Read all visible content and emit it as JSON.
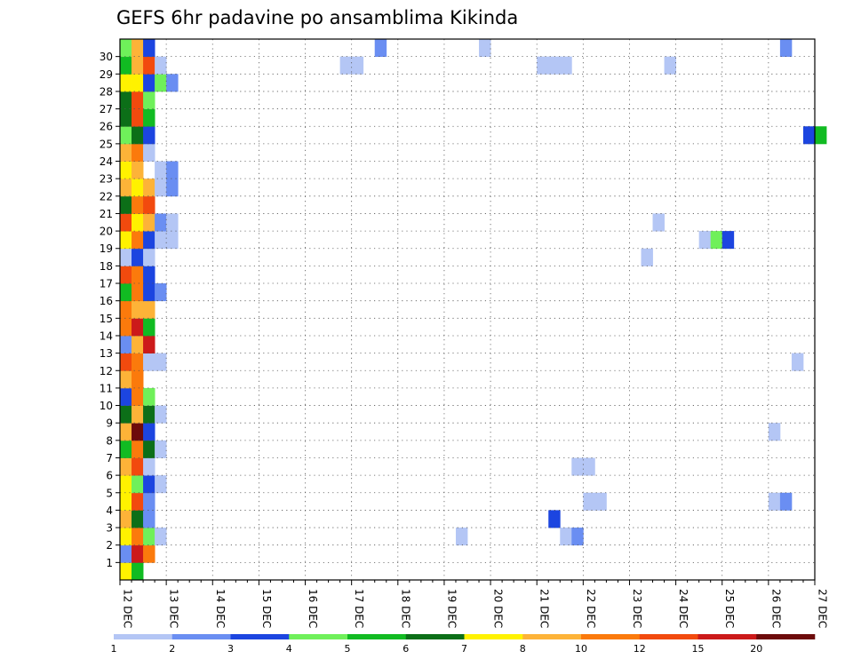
{
  "chart_data": {
    "type": "heatmap",
    "title": "GEFS 6hr padavine po ansamblima Kikinda",
    "xlabel": "",
    "ylabel": "",
    "x_ticks": [
      "12 DEC",
      "13 DEC",
      "14 DEC",
      "15 DEC",
      "16 DEC",
      "17 DEC",
      "18 DEC",
      "19 DEC",
      "20 DEC",
      "21 DEC",
      "22 DEC",
      "23 DEC",
      "24 DEC",
      "25 DEC",
      "26 DEC",
      "27 DEC"
    ],
    "y_ticks": [
      "1",
      "2",
      "3",
      "4",
      "5",
      "6",
      "7",
      "8",
      "9",
      "10",
      "11",
      "12",
      "13",
      "14",
      "15",
      "16",
      "17",
      "18",
      "19",
      "20",
      "21",
      "22",
      "23",
      "24",
      "25",
      "26",
      "27",
      "28",
      "29",
      "30"
    ],
    "time_step_hours": 6,
    "members": 30,
    "grid": true,
    "legend_placement": "bottom",
    "color_levels": [
      {
        "from": "1",
        "to": "2",
        "color": "#b4c6f5"
      },
      {
        "from": "2",
        "to": "3",
        "color": "#6a8ef2"
      },
      {
        "from": "3",
        "to": "4",
        "color": "#1c45e0"
      },
      {
        "from": "4",
        "to": "5",
        "color": "#6ff05a"
      },
      {
        "from": "5",
        "to": "6",
        "color": "#11bb22"
      },
      {
        "from": "6",
        "to": "7",
        "color": "#0c6f18"
      },
      {
        "from": "7",
        "to": "8",
        "color": "#fff200"
      },
      {
        "from": "8",
        "to": "10",
        "color": "#fdb338"
      },
      {
        "from": "10",
        "to": "12",
        "color": "#fb7a0c"
      },
      {
        "from": "12",
        "to": "15",
        "color": "#f24a0e"
      },
      {
        "from": "15",
        "to": "20",
        "color": "#cc1a1a"
      },
      {
        "from": "20",
        "to": "",
        "color": "#6d0b0b"
      }
    ],
    "legend_labels": [
      "1",
      "2",
      "3",
      "4",
      "5",
      "6",
      "7",
      "8",
      "10",
      "12",
      "15",
      "20"
    ],
    "cells": [
      {
        "m": 0,
        "s": [
          [
            0,
            "#fff200"
          ],
          [
            1,
            "#11bb22"
          ]
        ]
      },
      {
        "m": 1,
        "s": [
          [
            0,
            "#6a8ef2"
          ],
          [
            1,
            "#cc1a1a"
          ],
          [
            2,
            "#fb7a0c"
          ]
        ]
      },
      {
        "m": 2,
        "s": [
          [
            0,
            "#fff200"
          ],
          [
            1,
            "#fb7a0c"
          ],
          [
            2,
            "#6ff05a"
          ],
          [
            3,
            "#b4c6f5"
          ],
          [
            29,
            "#b4c6f5"
          ],
          [
            38,
            "#b4c6f5"
          ],
          [
            39,
            "#6a8ef2"
          ]
        ]
      },
      {
        "m": 3,
        "s": [
          [
            0,
            "#fdb338"
          ],
          [
            1,
            "#0c6f18"
          ],
          [
            2,
            "#6a8ef2"
          ],
          [
            37,
            "#1c45e0"
          ]
        ]
      },
      {
        "m": 4,
        "s": [
          [
            0,
            "#fff200"
          ],
          [
            1,
            "#f24a0e"
          ],
          [
            2,
            "#6a8ef2"
          ],
          [
            40,
            "#b4c6f5"
          ],
          [
            41,
            "#b4c6f5"
          ],
          [
            56,
            "#b4c6f5"
          ],
          [
            57,
            "#6a8ef2"
          ]
        ]
      },
      {
        "m": 5,
        "s": [
          [
            0,
            "#fff200"
          ],
          [
            1,
            "#6ff05a"
          ],
          [
            2,
            "#1c45e0"
          ],
          [
            3,
            "#b4c6f5"
          ]
        ]
      },
      {
        "m": 6,
        "s": [
          [
            0,
            "#fdb338"
          ],
          [
            1,
            "#f24a0e"
          ],
          [
            2,
            "#b4c6f5"
          ],
          [
            39,
            "#b4c6f5"
          ],
          [
            40,
            "#b4c6f5"
          ]
        ]
      },
      {
        "m": 7,
        "s": [
          [
            0,
            "#11bb22"
          ],
          [
            1,
            "#fb7a0c"
          ],
          [
            2,
            "#0c6f18"
          ],
          [
            3,
            "#b4c6f5"
          ]
        ]
      },
      {
        "m": 8,
        "s": [
          [
            0,
            "#fdb338"
          ],
          [
            1,
            "#6d0b0b"
          ],
          [
            2,
            "#1c45e0"
          ],
          [
            56,
            "#b4c6f5"
          ]
        ]
      },
      {
        "m": 9,
        "s": [
          [
            0,
            "#0c6f18"
          ],
          [
            1,
            "#fdb338"
          ],
          [
            2,
            "#0c6f18"
          ],
          [
            3,
            "#b4c6f5"
          ]
        ]
      },
      {
        "m": 10,
        "s": [
          [
            0,
            "#1c45e0"
          ],
          [
            1,
            "#fb7a0c"
          ],
          [
            2,
            "#6ff05a"
          ]
        ]
      },
      {
        "m": 11,
        "s": [
          [
            0,
            "#fdb338"
          ],
          [
            1,
            "#fb7a0c"
          ]
        ]
      },
      {
        "m": 12,
        "s": [
          [
            0,
            "#f24a0e"
          ],
          [
            1,
            "#fb7a0c"
          ],
          [
            2,
            "#b4c6f5"
          ],
          [
            3,
            "#b4c6f5"
          ],
          [
            58,
            "#b4c6f5"
          ]
        ]
      },
      {
        "m": 13,
        "s": [
          [
            0,
            "#6a8ef2"
          ],
          [
            1,
            "#fdb338"
          ],
          [
            2,
            "#cc1a1a"
          ]
        ]
      },
      {
        "m": 14,
        "s": [
          [
            0,
            "#fb7a0c"
          ],
          [
            1,
            "#cc1a1a"
          ],
          [
            2,
            "#11bb22"
          ]
        ]
      },
      {
        "m": 15,
        "s": [
          [
            0,
            "#fb7a0c"
          ],
          [
            1,
            "#fdb338"
          ],
          [
            2,
            "#fdb338"
          ]
        ]
      },
      {
        "m": 16,
        "s": [
          [
            0,
            "#11bb22"
          ],
          [
            1,
            "#fb7a0c"
          ],
          [
            2,
            "#1c45e0"
          ],
          [
            3,
            "#6a8ef2"
          ]
        ]
      },
      {
        "m": 17,
        "s": [
          [
            0,
            "#f24a0e"
          ],
          [
            1,
            "#fb7a0c"
          ],
          [
            2,
            "#1c45e0"
          ]
        ]
      },
      {
        "m": 18,
        "s": [
          [
            0,
            "#b4c6f5"
          ],
          [
            1,
            "#1c45e0"
          ],
          [
            2,
            "#b4c6f5"
          ],
          [
            45,
            "#b4c6f5"
          ]
        ]
      },
      {
        "m": 19,
        "s": [
          [
            0,
            "#fff200"
          ],
          [
            1,
            "#fb7a0c"
          ],
          [
            2,
            "#1c45e0"
          ],
          [
            3,
            "#b4c6f5"
          ],
          [
            4,
            "#b4c6f5"
          ],
          [
            50,
            "#b4c6f5"
          ],
          [
            51,
            "#6ff05a"
          ],
          [
            52,
            "#1c45e0"
          ]
        ]
      },
      {
        "m": 20,
        "s": [
          [
            0,
            "#f24a0e"
          ],
          [
            1,
            "#fff200"
          ],
          [
            2,
            "#fdb338"
          ],
          [
            3,
            "#6a8ef2"
          ],
          [
            4,
            "#b4c6f5"
          ],
          [
            46,
            "#b4c6f5"
          ]
        ]
      },
      {
        "m": 21,
        "s": [
          [
            0,
            "#0c6f18"
          ],
          [
            1,
            "#fb7a0c"
          ],
          [
            2,
            "#f24a0e"
          ]
        ]
      },
      {
        "m": 22,
        "s": [
          [
            0,
            "#fdb338"
          ],
          [
            1,
            "#fff200"
          ],
          [
            2,
            "#fdb338"
          ],
          [
            3,
            "#b4c6f5"
          ],
          [
            4,
            "#6a8ef2"
          ]
        ]
      },
      {
        "m": 23,
        "s": [
          [
            0,
            "#fff200"
          ],
          [
            1,
            "#fdb338"
          ],
          [
            3,
            "#b4c6f5"
          ],
          [
            4,
            "#6a8ef2"
          ]
        ]
      },
      {
        "m": 24,
        "s": [
          [
            0,
            "#fdb338"
          ],
          [
            1,
            "#fb7a0c"
          ],
          [
            2,
            "#b4c6f5"
          ]
        ]
      },
      {
        "m": 25,
        "s": [
          [
            0,
            "#6ff05a"
          ],
          [
            1,
            "#0c6f18"
          ],
          [
            2,
            "#1c45e0"
          ],
          [
            59,
            "#1c45e0"
          ],
          [
            60,
            "#11bb22"
          ]
        ]
      },
      {
        "m": 26,
        "s": [
          [
            0,
            "#0c6f18"
          ],
          [
            1,
            "#f24a0e"
          ],
          [
            2,
            "#11bb22"
          ]
        ]
      },
      {
        "m": 27,
        "s": [
          [
            0,
            "#0c6f18"
          ],
          [
            1,
            "#f24a0e"
          ],
          [
            2,
            "#6ff05a"
          ]
        ]
      },
      {
        "m": 28,
        "s": [
          [
            0,
            "#fff200"
          ],
          [
            1,
            "#fff200"
          ],
          [
            2,
            "#1c45e0"
          ],
          [
            3,
            "#6ff05a"
          ],
          [
            4,
            "#6a8ef2"
          ]
        ]
      },
      {
        "m": 29,
        "s": [
          [
            0,
            "#11bb22"
          ],
          [
            1,
            "#fdb338"
          ],
          [
            2,
            "#f24a0e"
          ],
          [
            3,
            "#b4c6f5"
          ],
          [
            19,
            "#b4c6f5"
          ],
          [
            20,
            "#b4c6f5"
          ],
          [
            36,
            "#b4c6f5"
          ],
          [
            37,
            "#b4c6f5"
          ],
          [
            38,
            "#b4c6f5"
          ],
          [
            47,
            "#b4c6f5"
          ]
        ]
      },
      {
        "m": 30,
        "s": [
          [
            0,
            "#6ff05a"
          ],
          [
            1,
            "#fdb338"
          ],
          [
            2,
            "#1c45e0"
          ],
          [
            22,
            "#6a8ef2"
          ],
          [
            31,
            "#b4c6f5"
          ],
          [
            57,
            "#6a8ef2"
          ]
        ]
      }
    ]
  }
}
